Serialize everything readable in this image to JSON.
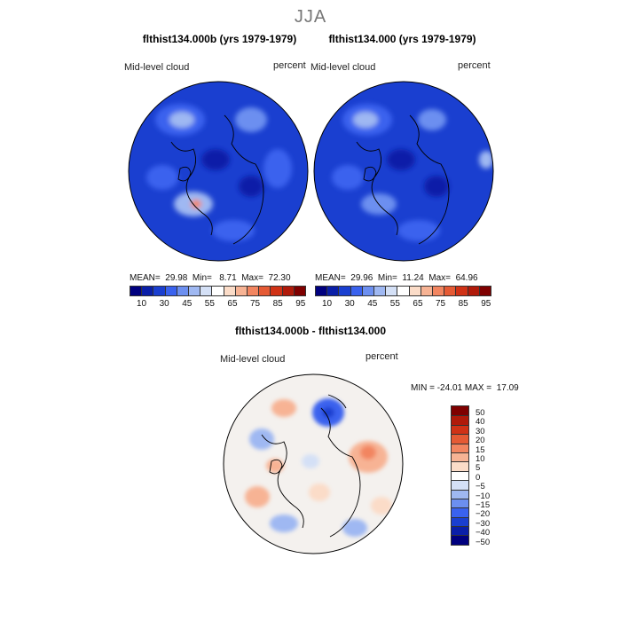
{
  "figure_title": "JJA",
  "panels": [
    {
      "title": "flthist134.000b (yrs 1979-1979)",
      "variable": "Mid-level cloud",
      "units": "percent",
      "mean_label": "MEAN=",
      "mean": "29.98",
      "min_label": "Min=",
      "min": "8.71",
      "max_label": "Max=",
      "max": "72.30"
    },
    {
      "title": "flthist134.000 (yrs 1979-1979)",
      "variable": "Mid-level cloud",
      "units": "percent",
      "mean_label": "MEAN=",
      "mean": "29.96",
      "min_label": "Min=",
      "min": "11.24",
      "max_label": "Max=",
      "max": "64.96"
    }
  ],
  "abs_colorbar": {
    "tick_labels": [
      "10",
      "30",
      "45",
      "55",
      "65",
      "75",
      "85",
      "95"
    ],
    "colors": [
      "#00007f",
      "#0a1fa8",
      "#1a3fd0",
      "#3a62ee",
      "#6c8ff0",
      "#9fb8f2",
      "#d4e0f6",
      "#ffffff",
      "#fbdcc8",
      "#f7b394",
      "#f28560",
      "#e55a34",
      "#d03216",
      "#b01a0a",
      "#7f0000"
    ]
  },
  "diff_panel": {
    "title": "flthist134.000b - flthist134.000",
    "variable": "Mid-level cloud",
    "units": "percent",
    "min_max_text": "MIN = -24.01 MAX =  17.09"
  },
  "diff_colorbar": {
    "levels": [
      "50",
      "40",
      "30",
      "20",
      "15",
      "10",
      "5",
      "0",
      "−5",
      "−10",
      "−15",
      "−20",
      "−30",
      "−40",
      "−50"
    ],
    "colors": [
      "#7f0000",
      "#b01a0a",
      "#d03216",
      "#e55a34",
      "#f28560",
      "#f7b394",
      "#fbdcc8",
      "#ffffff",
      "#d4e0f6",
      "#9fb8f2",
      "#6c8ff0",
      "#3a62ee",
      "#1a3fd0",
      "#0a1fa8",
      "#00007f"
    ]
  }
}
